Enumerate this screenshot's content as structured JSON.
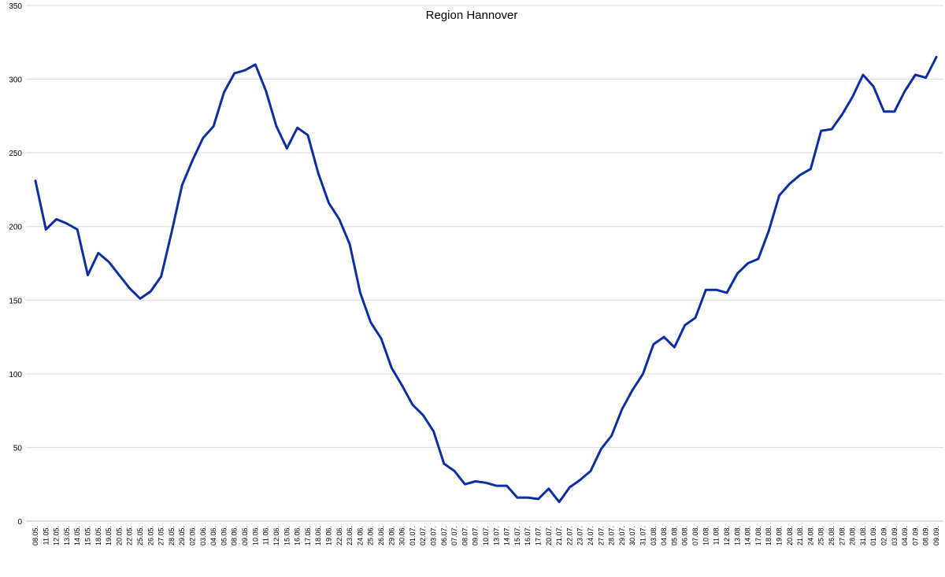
{
  "chart_data": {
    "type": "line",
    "title": "Region Hannover",
    "xlabel": "",
    "ylabel": "",
    "ylim": [
      0,
      350
    ],
    "yticks": [
      0,
      50,
      100,
      150,
      200,
      250,
      300,
      350
    ],
    "grid": true,
    "legend": "none",
    "colors": {
      "series": "#0b2fa0",
      "grid": "#d9d9d9",
      "background": "#ffffff"
    },
    "categories": [
      "08.05.",
      "11.05.",
      "12.05.",
      "13.05.",
      "14.05.",
      "15.05.",
      "18.05.",
      "19.05.",
      "20.05.",
      "22.05.",
      "25.05.",
      "26.05.",
      "27.05.",
      "28.05.",
      "29.05.",
      "02.06.",
      "03.06.",
      "04.06.",
      "05.06.",
      "08.06.",
      "09.06.",
      "10.06.",
      "11.06.",
      "12.06.",
      "15.06.",
      "16.06.",
      "17.06.",
      "18.06.",
      "19.06.",
      "22.06.",
      "23.06.",
      "24.06.",
      "25.06.",
      "26.06.",
      "29.06.",
      "30.06.",
      "01.07.",
      "02.07.",
      "03.07.",
      "06.07.",
      "07.07.",
      "08.07.",
      "09.07.",
      "10.07.",
      "13.07.",
      "14.07.",
      "15.07.",
      "16.07.",
      "17.07.",
      "20.07.",
      "21.07.",
      "22.07.",
      "23.07.",
      "24.07.",
      "27.07.",
      "28.07.",
      "29.07.",
      "30.07.",
      "31.07.",
      "03.08.",
      "04.08.",
      "05.08.",
      "06.08.",
      "07.08.",
      "10.08.",
      "11.08.",
      "12.08.",
      "13.08.",
      "14.08.",
      "17.08.",
      "18.08.",
      "19.08.",
      "20.08.",
      "21.08.",
      "24.08.",
      "25.08.",
      "26.08.",
      "27.08.",
      "28.08.",
      "31.08.",
      "01.09.",
      "02.09.",
      "03.09.",
      "04.09.",
      "07.09.",
      "08.09.",
      "09.09."
    ],
    "series": [
      {
        "name": "",
        "values": [
          231,
          198,
          205,
          202,
          198,
          167,
          182,
          176,
          167,
          158,
          151,
          156,
          166,
          196,
          228,
          245,
          260,
          268,
          291,
          304,
          306,
          310,
          292,
          268,
          253,
          267,
          262,
          236,
          216,
          205,
          188,
          155,
          135,
          124,
          104,
          92,
          79,
          72,
          61,
          39,
          34,
          25,
          27,
          26,
          24,
          24,
          16,
          16,
          15,
          22,
          13,
          23,
          28,
          34,
          49,
          58,
          76,
          89,
          100,
          120,
          125,
          118,
          133,
          138,
          157,
          157,
          155,
          168,
          175,
          178,
          197,
          221,
          229,
          235,
          239,
          265,
          266,
          276,
          288,
          303,
          295,
          278,
          278,
          292,
          303,
          301,
          315
        ]
      }
    ]
  }
}
